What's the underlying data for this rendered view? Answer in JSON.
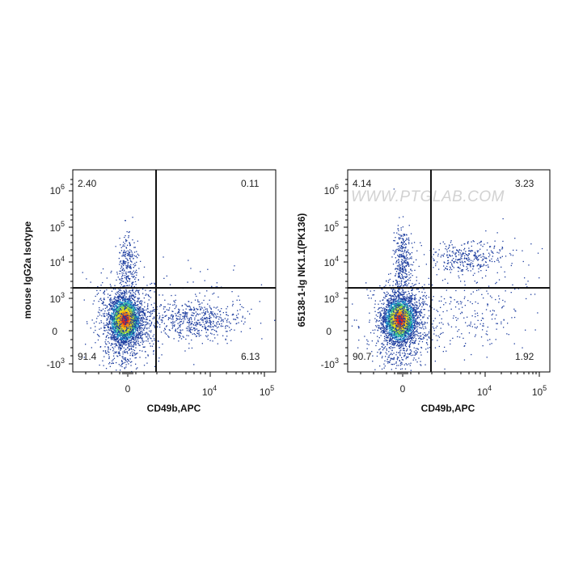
{
  "watermark": "WWW.PTGLAB.COM",
  "chart_data": [
    {
      "type": "scatter",
      "title": "",
      "xlabel": "CD49b,APC",
      "ylabel": "mouse IgG2a Isotype",
      "x_scale": "biexponential",
      "y_scale": "biexponential",
      "x_ticks": [
        {
          "base": "0",
          "exp": ""
        },
        {
          "base": "10",
          "exp": "4"
        },
        {
          "base": "10",
          "exp": "5"
        }
      ],
      "y_ticks": [
        {
          "base": "10",
          "exp": "6"
        },
        {
          "base": "10",
          "exp": "5"
        },
        {
          "base": "10",
          "exp": "4"
        },
        {
          "base": "10",
          "exp": "3"
        },
        {
          "base": "0",
          "exp": ""
        },
        {
          "base": "-10",
          "exp": "3"
        }
      ],
      "quadrant_gate": {
        "x": 1500,
        "y": 2000
      },
      "quadrants": {
        "upper_left": "2.40",
        "upper_right": "0.11",
        "lower_left": "91.4",
        "lower_right": "6.13"
      },
      "colormap": "density: blue-green-yellow-red"
    },
    {
      "type": "scatter",
      "title": "",
      "xlabel": "CD49b,APC",
      "ylabel": "65138-1-Ig NK1.1(PK136)",
      "x_scale": "biexponential",
      "y_scale": "biexponential",
      "x_ticks": [
        {
          "base": "0",
          "exp": ""
        },
        {
          "base": "10",
          "exp": "4"
        },
        {
          "base": "10",
          "exp": "5"
        }
      ],
      "y_ticks": [
        {
          "base": "10",
          "exp": "6"
        },
        {
          "base": "10",
          "exp": "5"
        },
        {
          "base": "10",
          "exp": "4"
        },
        {
          "base": "10",
          "exp": "3"
        },
        {
          "base": "0",
          "exp": ""
        },
        {
          "base": "-10",
          "exp": "3"
        }
      ],
      "quadrant_gate": {
        "x": 1500,
        "y": 2000
      },
      "quadrants": {
        "upper_left": "4.14",
        "upper_right": "3.23",
        "lower_left": "90.7",
        "lower_right": "1.92"
      },
      "colormap": "density: blue-green-yellow-red"
    }
  ]
}
